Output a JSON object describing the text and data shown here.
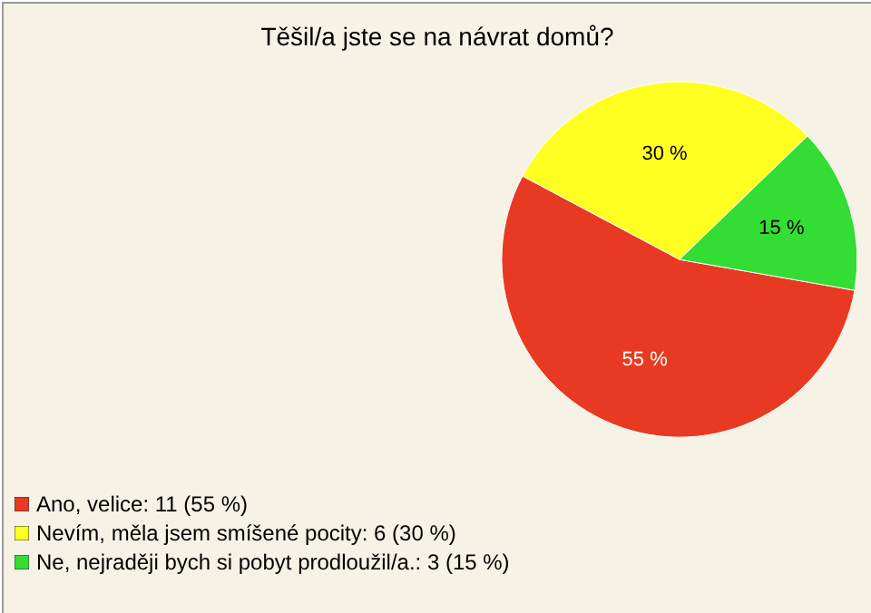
{
  "chart_data": {
    "type": "pie",
    "title": "Těšil/a jste se na návrat domů?",
    "categories": [
      "Ano, velice: 11 (55 %)",
      "Nevím, měla jsem smíšené pocity: 6 (30 %)",
      "Ne, nejraději bych si pobyt prodloužil/a.: 3 (15 %)"
    ],
    "values": [
      55,
      30,
      15
    ],
    "value_labels": [
      "55 %",
      "30 %",
      "15 %"
    ],
    "colors": [
      "#e83a22",
      "#ffff22",
      "#33dd33"
    ],
    "legend": "bottom left"
  }
}
